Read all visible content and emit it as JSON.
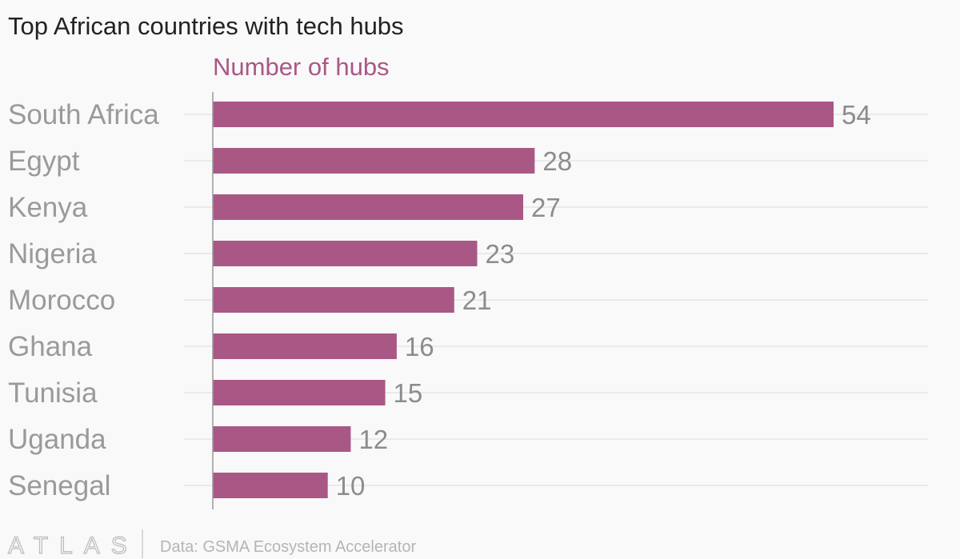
{
  "chart_data": {
    "type": "bar",
    "orientation": "horizontal",
    "title": "Top African countries with tech hubs",
    "subtitle": "Number of hubs",
    "categories": [
      "South Africa",
      "Egypt",
      "Kenya",
      "Nigeria",
      "Morocco",
      "Ghana",
      "Tunisia",
      "Uganda",
      "Senegal"
    ],
    "values": [
      54,
      28,
      27,
      23,
      21,
      16,
      15,
      12,
      10
    ],
    "xlim": [
      0,
      54
    ],
    "grid": true,
    "bar_color": "#a95886"
  },
  "footer": {
    "logo": "ATLAS",
    "source": "Data: GSMA Ecosystem Accelerator"
  }
}
